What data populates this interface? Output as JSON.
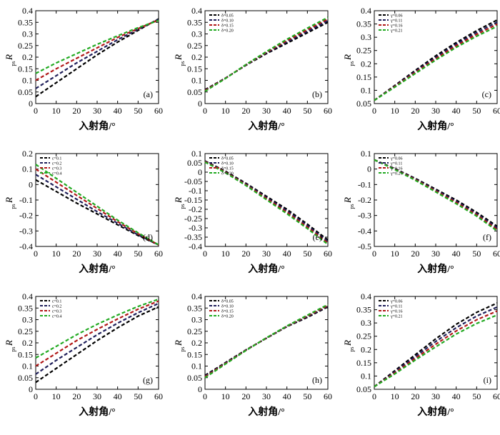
{
  "figure": {
    "x_axis_label": "入射角/°",
    "y_axis_label": "R",
    "y_axis_subscript": "ps"
  },
  "chart_data": [
    {
      "type": "line",
      "panel_label": "(a)",
      "x": [
        0,
        10,
        20,
        30,
        40,
        50,
        60
      ],
      "xlim": [
        0,
        60
      ],
      "ylim": [
        0,
        0.4
      ],
      "yticks": [
        0,
        0.05,
        0.1,
        0.15,
        0.2,
        0.25,
        0.3,
        0.35,
        0.4
      ],
      "xticks": [
        0,
        10,
        20,
        30,
        40,
        50,
        60
      ],
      "legend": false,
      "series": [
        {
          "color": "#000000",
          "values": [
            0.03,
            0.09,
            0.15,
            0.21,
            0.265,
            0.315,
            0.365
          ]
        },
        {
          "color": "#1f1f5a",
          "values": [
            0.065,
            0.12,
            0.175,
            0.225,
            0.275,
            0.32,
            0.363
          ]
        },
        {
          "color": "#b01818",
          "values": [
            0.1,
            0.15,
            0.195,
            0.24,
            0.285,
            0.323,
            0.36
          ]
        },
        {
          "color": "#22aa22",
          "values": [
            0.13,
            0.175,
            0.215,
            0.255,
            0.292,
            0.327,
            0.358
          ]
        }
      ]
    },
    {
      "type": "line",
      "panel_label": "(b)",
      "x": [
        0,
        10,
        20,
        30,
        40,
        50,
        60
      ],
      "xlim": [
        0,
        60
      ],
      "ylim": [
        0,
        0.4
      ],
      "yticks": [
        0,
        0.05,
        0.1,
        0.15,
        0.2,
        0.25,
        0.3,
        0.35,
        0.4
      ],
      "xticks": [
        0,
        10,
        20,
        30,
        40,
        50,
        60
      ],
      "legend": true,
      "series": [
        {
          "name": "δ=0.05",
          "color": "#000000",
          "values": [
            0.06,
            0.11,
            0.165,
            0.215,
            0.26,
            0.305,
            0.35
          ]
        },
        {
          "name": "δ=0.10",
          "color": "#1f1f5a",
          "values": [
            0.058,
            0.11,
            0.166,
            0.218,
            0.266,
            0.311,
            0.357
          ]
        },
        {
          "name": "δ=0.15",
          "color": "#b01818",
          "values": [
            0.056,
            0.109,
            0.167,
            0.221,
            0.271,
            0.318,
            0.364
          ]
        },
        {
          "name": "δ=0.20",
          "color": "#22aa22",
          "values": [
            0.053,
            0.108,
            0.168,
            0.224,
            0.277,
            0.325,
            0.371
          ]
        }
      ]
    },
    {
      "type": "line",
      "panel_label": "(c)",
      "x": [
        0,
        10,
        20,
        30,
        40,
        50,
        60
      ],
      "xlim": [
        0,
        60
      ],
      "ylim": [
        0.05,
        0.4
      ],
      "yticks": [
        0.05,
        0.1,
        0.15,
        0.2,
        0.25,
        0.3,
        0.35,
        0.4
      ],
      "xticks": [
        0,
        10,
        20,
        30,
        40,
        50,
        60
      ],
      "legend": true,
      "series": [
        {
          "name": "γ=0.06",
          "color": "#000000",
          "values": [
            0.062,
            0.118,
            0.175,
            0.23,
            0.28,
            0.325,
            0.365
          ]
        },
        {
          "name": "γ=0.11",
          "color": "#1f1f5a",
          "values": [
            0.062,
            0.116,
            0.171,
            0.224,
            0.274,
            0.318,
            0.357
          ]
        },
        {
          "name": "γ=0.16",
          "color": "#b01818",
          "values": [
            0.062,
            0.114,
            0.167,
            0.219,
            0.268,
            0.311,
            0.349
          ]
        },
        {
          "name": "γ=0.21",
          "color": "#22aa22",
          "values": [
            0.062,
            0.112,
            0.163,
            0.214,
            0.262,
            0.304,
            0.341
          ]
        }
      ]
    },
    {
      "type": "line",
      "panel_label": "(d)",
      "x": [
        0,
        10,
        20,
        30,
        40,
        50,
        60
      ],
      "xlim": [
        0,
        60
      ],
      "ylim": [
        -0.4,
        0.2
      ],
      "yticks": [
        -0.4,
        -0.3,
        -0.2,
        -0.1,
        0,
        0.1,
        0.2
      ],
      "xticks": [
        0,
        10,
        20,
        30,
        40,
        50,
        60
      ],
      "legend": true,
      "series": [
        {
          "name": "ε=0.1",
          "color": "#000000",
          "values": [
            0.03,
            -0.045,
            -0.12,
            -0.19,
            -0.26,
            -0.33,
            -0.39
          ]
        },
        {
          "name": "ε=0.2",
          "color": "#1f1f5a",
          "values": [
            0.065,
            -0.015,
            -0.095,
            -0.175,
            -0.25,
            -0.325,
            -0.39
          ]
        },
        {
          "name": "ε=0.3",
          "color": "#b01818",
          "values": [
            0.1,
            0.015,
            -0.07,
            -0.155,
            -0.24,
            -0.318,
            -0.39
          ]
        },
        {
          "name": "ε=0.4",
          "color": "#22aa22",
          "values": [
            0.13,
            0.04,
            -0.05,
            -0.14,
            -0.23,
            -0.312,
            -0.39
          ]
        }
      ]
    },
    {
      "type": "line",
      "panel_label": "(e)",
      "x": [
        0,
        10,
        20,
        30,
        40,
        50,
        60
      ],
      "xlim": [
        0,
        60
      ],
      "ylim": [
        -0.4,
        0.1
      ],
      "yticks": [
        -0.4,
        -0.35,
        -0.3,
        -0.25,
        -0.2,
        -0.15,
        -0.1,
        -0.05,
        0,
        0.05,
        0.1
      ],
      "xticks": [
        0,
        10,
        20,
        30,
        40,
        50,
        60
      ],
      "legend": true,
      "series": [
        {
          "name": "δ=0.05",
          "color": "#000000",
          "values": [
            0.06,
            0.005,
            -0.06,
            -0.13,
            -0.2,
            -0.28,
            -0.365
          ]
        },
        {
          "name": "δ=0.10",
          "color": "#1f1f5a",
          "values": [
            0.058,
            0.002,
            -0.064,
            -0.136,
            -0.208,
            -0.288,
            -0.373
          ]
        },
        {
          "name": "δ=0.15",
          "color": "#b01818",
          "values": [
            0.056,
            0,
            -0.068,
            -0.142,
            -0.216,
            -0.296,
            -0.381
          ]
        },
        {
          "name": "δ=0.20",
          "color": "#22aa22",
          "values": [
            0.054,
            -0.003,
            -0.072,
            -0.148,
            -0.224,
            -0.304,
            -0.389
          ]
        }
      ]
    },
    {
      "type": "line",
      "panel_label": "(f)",
      "x": [
        0,
        10,
        20,
        30,
        40,
        50,
        60
      ],
      "xlim": [
        0,
        60
      ],
      "ylim": [
        -0.5,
        0.1
      ],
      "yticks": [
        -0.5,
        -0.4,
        -0.3,
        -0.2,
        -0.1,
        0,
        0.1
      ],
      "xticks": [
        0,
        10,
        20,
        30,
        40,
        50,
        60
      ],
      "legend": true,
      "series": [
        {
          "name": "γ=0.06",
          "color": "#000000",
          "values": [
            0.06,
            0.003,
            -0.06,
            -0.13,
            -0.2,
            -0.28,
            -0.37
          ]
        },
        {
          "name": "γ=0.11",
          "color": "#1f1f5a",
          "values": [
            0.06,
            0.001,
            -0.064,
            -0.136,
            -0.208,
            -0.288,
            -0.38
          ]
        },
        {
          "name": "γ=0.16",
          "color": "#b01818",
          "values": [
            0.06,
            -0.001,
            -0.068,
            -0.142,
            -0.216,
            -0.296,
            -0.39
          ]
        },
        {
          "name": "γ=0.21",
          "color": "#22aa22",
          "values": [
            0.06,
            -0.003,
            -0.072,
            -0.148,
            -0.224,
            -0.304,
            -0.4
          ]
        }
      ]
    },
    {
      "type": "line",
      "panel_label": "(g)",
      "x": [
        0,
        10,
        20,
        30,
        40,
        50,
        60
      ],
      "xlim": [
        0,
        60
      ],
      "ylim": [
        0,
        0.4
      ],
      "yticks": [
        0,
        0.05,
        0.1,
        0.15,
        0.2,
        0.25,
        0.3,
        0.35,
        0.4
      ],
      "xticks": [
        0,
        10,
        20,
        30,
        40,
        50,
        60
      ],
      "legend": true,
      "series": [
        {
          "name": "ε=0.1",
          "color": "#000000",
          "values": [
            0.03,
            0.09,
            0.15,
            0.21,
            0.265,
            0.315,
            0.355
          ]
        },
        {
          "name": "ε=0.2",
          "color": "#1f1f5a",
          "values": [
            0.065,
            0.125,
            0.18,
            0.235,
            0.285,
            0.33,
            0.37
          ]
        },
        {
          "name": "ε=0.3",
          "color": "#b01818",
          "values": [
            0.1,
            0.155,
            0.21,
            0.258,
            0.303,
            0.345,
            0.38
          ]
        },
        {
          "name": "ε=0.4",
          "color": "#22aa22",
          "values": [
            0.135,
            0.185,
            0.235,
            0.28,
            0.32,
            0.357,
            0.388
          ]
        }
      ]
    },
    {
      "type": "line",
      "panel_label": "(h)",
      "x": [
        0,
        10,
        20,
        30,
        40,
        50,
        60
      ],
      "xlim": [
        0,
        60
      ],
      "ylim": [
        0,
        0.4
      ],
      "yticks": [
        0,
        0.05,
        0.1,
        0.15,
        0.2,
        0.25,
        0.3,
        0.35,
        0.4
      ],
      "xticks": [
        0,
        10,
        20,
        30,
        40,
        50,
        60
      ],
      "legend": true,
      "series": [
        {
          "name": "δ=0.05",
          "color": "#000000",
          "values": [
            0.06,
            0.115,
            0.17,
            0.22,
            0.27,
            0.31,
            0.355
          ]
        },
        {
          "name": "δ=0.10",
          "color": "#1f1f5a",
          "values": [
            0.057,
            0.113,
            0.169,
            0.22,
            0.271,
            0.313,
            0.358
          ]
        },
        {
          "name": "δ=0.15",
          "color": "#b01818",
          "values": [
            0.054,
            0.111,
            0.168,
            0.221,
            0.272,
            0.316,
            0.361
          ]
        },
        {
          "name": "δ=0.20",
          "color": "#22aa22",
          "values": [
            0.05,
            0.109,
            0.167,
            0.222,
            0.273,
            0.319,
            0.365
          ]
        }
      ]
    },
    {
      "type": "line",
      "panel_label": "(i)",
      "x": [
        0,
        10,
        20,
        30,
        40,
        50,
        60
      ],
      "xlim": [
        0,
        60
      ],
      "ylim": [
        0.05,
        0.4
      ],
      "yticks": [
        0.05,
        0.1,
        0.15,
        0.2,
        0.25,
        0.3,
        0.35,
        0.4
      ],
      "xticks": [
        0,
        10,
        20,
        30,
        40,
        50,
        60
      ],
      "legend": true,
      "series": [
        {
          "name": "γ=0.06",
          "color": "#000000",
          "values": [
            0.06,
            0.12,
            0.18,
            0.24,
            0.295,
            0.34,
            0.375
          ]
        },
        {
          "name": "γ=0.11",
          "color": "#1f1f5a",
          "values": [
            0.06,
            0.116,
            0.173,
            0.23,
            0.282,
            0.326,
            0.36
          ]
        },
        {
          "name": "γ=0.16",
          "color": "#b01818",
          "values": [
            0.06,
            0.112,
            0.166,
            0.22,
            0.27,
            0.312,
            0.345
          ]
        },
        {
          "name": "γ=0.21",
          "color": "#22aa22",
          "values": [
            0.06,
            0.108,
            0.16,
            0.21,
            0.258,
            0.298,
            0.33
          ]
        }
      ]
    }
  ]
}
